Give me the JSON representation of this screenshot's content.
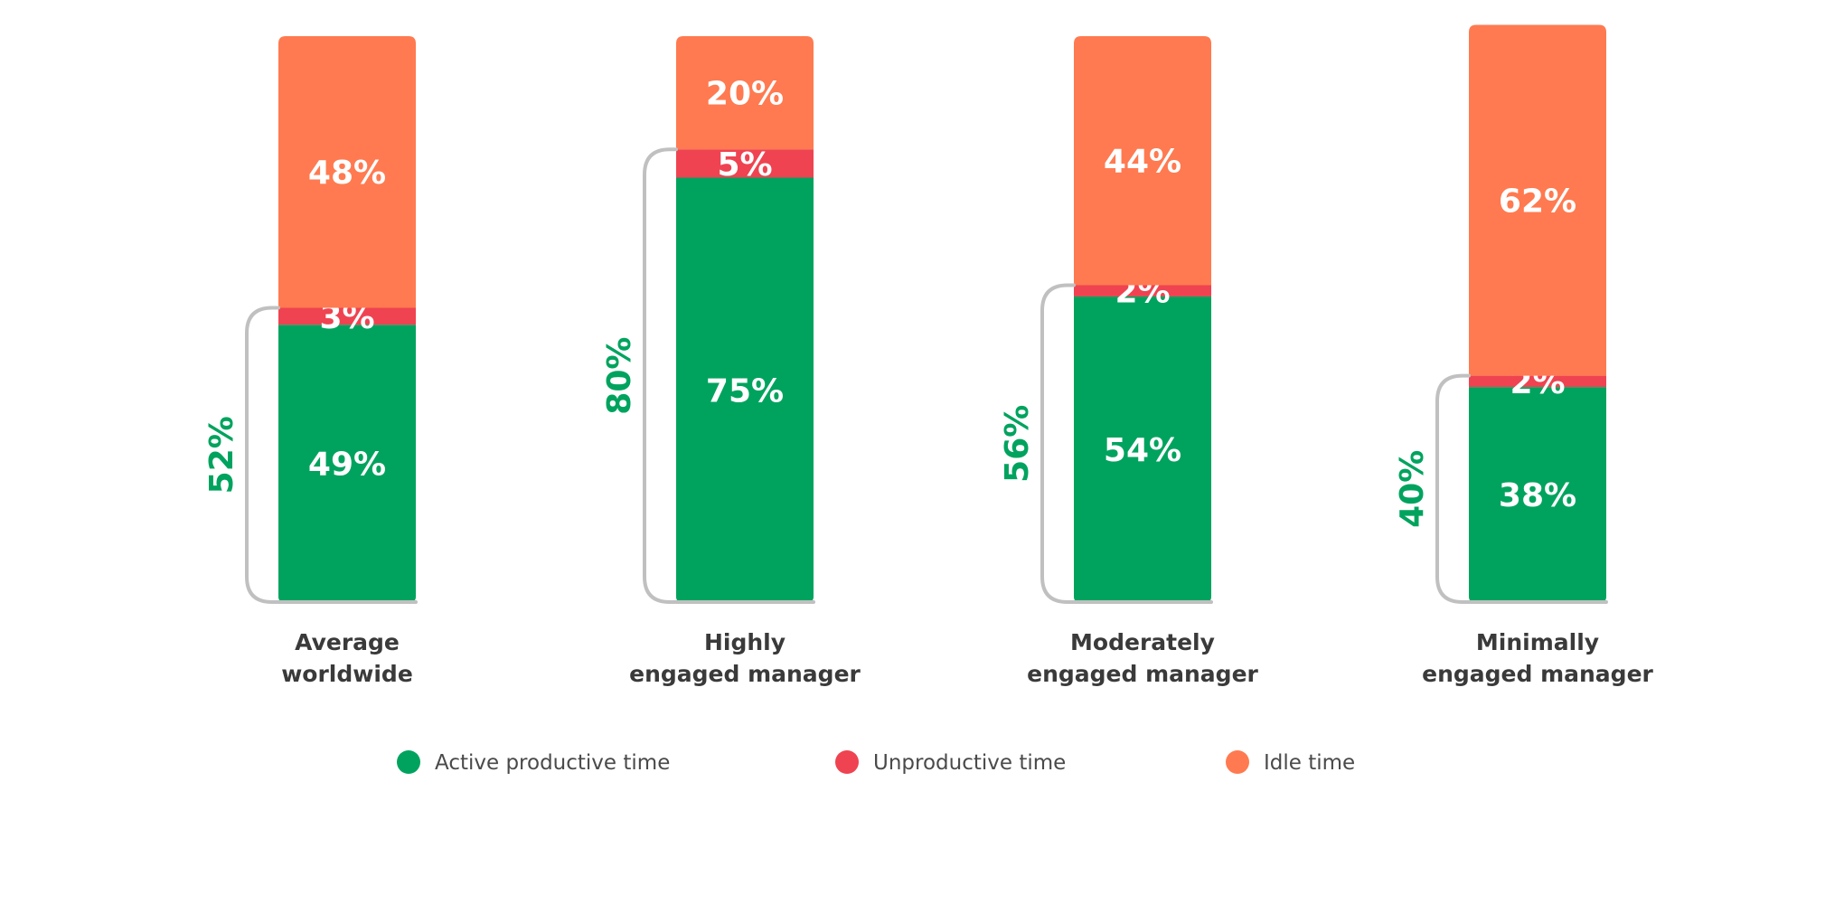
{
  "chart_data": {
    "type": "bar",
    "stacked": true,
    "categories": [
      "Average worldwide",
      "Highly engaged manager",
      "Moderately engaged manager",
      "Minimally engaged manager"
    ],
    "category_lines": [
      [
        "Average",
        "worldwide"
      ],
      [
        "Highly",
        "engaged manager"
      ],
      [
        "Moderately",
        "engaged manager"
      ],
      [
        "Minimally",
        "engaged manager"
      ]
    ],
    "series": [
      {
        "name": "Active productive time",
        "color": "#00A35E",
        "values": [
          49,
          75,
          54,
          38
        ],
        "labels": [
          "49%",
          "75%",
          "54%",
          "38%"
        ]
      },
      {
        "name": "Unproductive time",
        "color": "#EF4351",
        "values": [
          3,
          5,
          2,
          2
        ],
        "labels": [
          "3%",
          "5%",
          "2%",
          "2%"
        ]
      },
      {
        "name": "Idle time",
        "color": "#FF7A50",
        "values": [
          48,
          20,
          44,
          62
        ],
        "labels": [
          "48%",
          "20%",
          "44%",
          "62%"
        ]
      }
    ],
    "bracket": {
      "color": "#00A35E",
      "values": [
        52,
        80,
        56,
        40
      ],
      "labels": [
        "52%",
        "80%",
        "56%",
        "40%"
      ]
    },
    "ylim": [
      0,
      100
    ],
    "legend_position": "bottom",
    "grid": false
  }
}
